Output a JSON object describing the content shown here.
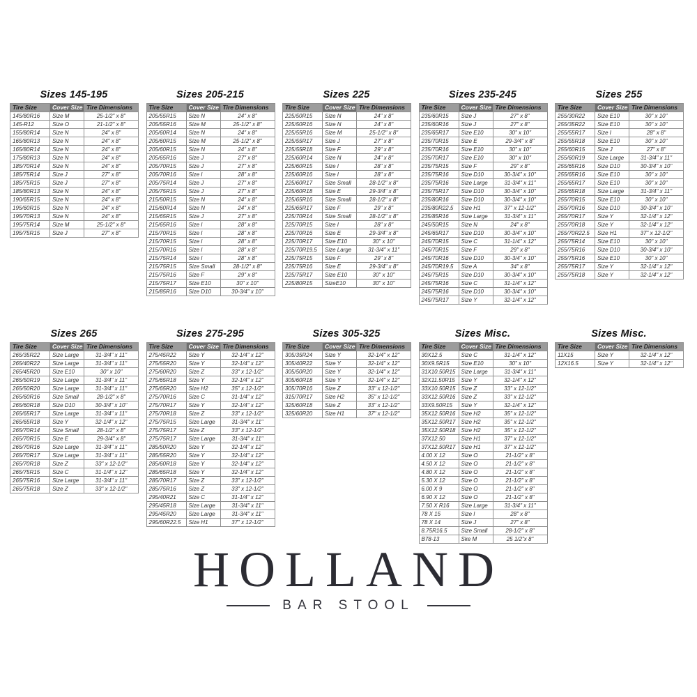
{
  "columns": [
    "Tire Size",
    "Cover Size",
    "Tire Dimensions"
  ],
  "colors": {
    "header_bg": "#9c9c9c",
    "cover_header_bg": "#6f6f6f",
    "cover_header_text": "#ffffff",
    "border": "#8f8f8f",
    "cell_text": "#2e2e2e",
    "logo_text": "#2c2c33"
  },
  "logo": {
    "name": "HOLLAND",
    "subtitle": "BAR STOOL"
  },
  "tables": [
    {
      "title": "Sizes 145-195",
      "rows": [
        [
          "145/80R16",
          "Size M",
          "25-1/2\" x 8\""
        ],
        [
          "145-R12",
          "Size O",
          "21-1/2\" x 8\""
        ],
        [
          "155/80R14",
          "Size N",
          "24\" x 8\""
        ],
        [
          "165/80R13",
          "Size N",
          "24\" x 8\""
        ],
        [
          "165/80R14",
          "Size N",
          "24\" x 8\""
        ],
        [
          "175/80R13",
          "Size N",
          "24\" x 8\""
        ],
        [
          "185/70R14",
          "Size N",
          "24\" x 8\""
        ],
        [
          "185/75R14",
          "Size J",
          "27\" x 8\""
        ],
        [
          "185/75R15",
          "Size J",
          "27\" x 8\""
        ],
        [
          "185/80R13",
          "Size N",
          "24\" x 8\""
        ],
        [
          "190/65R15",
          "Size N",
          "24\" x 8\""
        ],
        [
          "195/60R15",
          "Size N",
          "24\" x 8\""
        ],
        [
          "195/70R13",
          "Size N",
          "24\" x 8\""
        ],
        [
          "195/75R14",
          "Size M",
          "25-1/2\" x 8\""
        ],
        [
          "195/75R15",
          "Size J",
          "27\" x 8\""
        ]
      ]
    },
    {
      "title": "Sizes 205-215",
      "rows": [
        [
          "205/55R15",
          "Size N",
          "24\" x 8\""
        ],
        [
          "205/55R16",
          "Size M",
          "25-1/2\" x 8\""
        ],
        [
          "205/60R14",
          "Size N",
          "24\" x 8\""
        ],
        [
          "205/60R15",
          "Size M",
          "25-1/2\" x 8\""
        ],
        [
          "205/60R15",
          "Size N",
          "24\" x 8\""
        ],
        [
          "205/65R16",
          "Size J",
          "27\" x 8\""
        ],
        [
          "205/70R15",
          "Size J",
          "27\" x 8\""
        ],
        [
          "205/70R16",
          "Size I",
          "28\" x 8\""
        ],
        [
          "205/75R14",
          "Size J",
          "27\" x 8\""
        ],
        [
          "205/75R15",
          "Size J",
          "27\" x 8\""
        ],
        [
          "215/50R15",
          "Size N",
          "24\" x 8\""
        ],
        [
          "215/60R14",
          "Size N",
          "24\" x 8\""
        ],
        [
          "215/65R15",
          "Size J",
          "27\" x 8\""
        ],
        [
          "215/65R16",
          "Size I",
          "28\" x 8\""
        ],
        [
          "215/70R15",
          "Size I",
          "28\" x 8\""
        ],
        [
          "215/70R15",
          "Size I",
          "28\" x 8\""
        ],
        [
          "215/70R16",
          "Size I",
          "28\" x 8\""
        ],
        [
          "215/75R14",
          "Size I",
          "28\" x 8\""
        ],
        [
          "215/75R15",
          "Size Small",
          "28-1/2\" x 8\""
        ],
        [
          "215/75R16",
          "Size F",
          "29\" x 8\""
        ],
        [
          "215/75R17",
          "Size E10",
          "30\" x 10\""
        ],
        [
          "215/85R16",
          "Size D10",
          "30-3/4\" x 10\""
        ]
      ]
    },
    {
      "title": "Sizes 225",
      "rows": [
        [
          "225/50R15",
          "Size N",
          "24\" x 8\""
        ],
        [
          "225/50R16",
          "Size N",
          "24\" x 8\""
        ],
        [
          "225/55R16",
          "Size M",
          "25-1/2\" x 8\""
        ],
        [
          "225/55R17",
          "Size J",
          "27\" x 8\""
        ],
        [
          "225/55R18",
          "Size F",
          "29\" x 8\""
        ],
        [
          "225/60R14",
          "Size N",
          "24\" x 8\""
        ],
        [
          "225/60R15",
          "Size I",
          "28\" x 8\""
        ],
        [
          "225/60R16",
          "Size I",
          "28\" x 8\""
        ],
        [
          "225/60R17",
          "Size Small",
          "28-1/2\" x 8\""
        ],
        [
          "225/60R18",
          "Size E",
          "29-3/4\" x 8\""
        ],
        [
          "225/65R16",
          "Size Small",
          "28-1/2\" x 8\""
        ],
        [
          "225/65R17",
          "Size F",
          "29\" x 8\""
        ],
        [
          "225/70R14",
          "Size Small",
          "28-1/2\" x 8\""
        ],
        [
          "225/70R15",
          "Size I",
          "28\" x 8\""
        ],
        [
          "225/70R16",
          "Size E",
          "29-3/4\" x 8\""
        ],
        [
          "225/70R17",
          "Size E10",
          "30\" x 10\""
        ],
        [
          "225/70R19.5",
          "Size Large",
          "31-3/4\" x 11\""
        ],
        [
          "225/75R15",
          "Size F",
          "29\" x 8\""
        ],
        [
          "225/75R16",
          "Size E",
          "29-3/4\" x 8\""
        ],
        [
          "225/75R17",
          "Size E10",
          "30\" x 10\""
        ],
        [
          "225/80R15",
          "SizeE10",
          "30\" x 10\""
        ]
      ]
    },
    {
      "title": "Sizes 235-245",
      "rows": [
        [
          "235/60R15",
          "Size J",
          "27\" x 8\""
        ],
        [
          "235/60R16",
          "Size J",
          "27\" x 8\""
        ],
        [
          "235/65R17",
          "Size E10",
          "30\" x 10\""
        ],
        [
          "235/70R15",
          "Size E",
          "29-3/4\" x 8\""
        ],
        [
          "235/70R16",
          "Size E10",
          "30\" x 10\""
        ],
        [
          "235/70R17",
          "Size E10",
          "30\" x 10\""
        ],
        [
          "235/75R15",
          "Size F",
          "29\" x 8\""
        ],
        [
          "235/75R16",
          "Size D10",
          "30-3/4\" x 10\""
        ],
        [
          "235/75R16",
          "Size Large",
          "31-3/4\" x 11\""
        ],
        [
          "235/75R17",
          "Size D10",
          "30-3/4\" x 10\""
        ],
        [
          "235/80R16",
          "Size D10",
          "30-3/4\" x 10\""
        ],
        [
          "235/80R22.5",
          "Size H1",
          "37\" x 12-1/2\""
        ],
        [
          "235/85R16",
          "Size Large",
          "31-3/4\" x 11\""
        ],
        [
          "245/50R15",
          "Size N",
          "24\" x 8\""
        ],
        [
          "245/65R17",
          "Size D10",
          "30-3/4\" x 10\""
        ],
        [
          "245/70R15",
          "Size C",
          "31-1/4\" x 12\""
        ],
        [
          "245/70R15",
          "Size F",
          "29\" x 8\""
        ],
        [
          "245/70R16",
          "Size D10",
          "30-3/4\" x 10\""
        ],
        [
          "245/70R19.5",
          "Size A",
          "34\" x 8\""
        ],
        [
          "245/75R15",
          "Size D10",
          "30-3/4\" x 10\""
        ],
        [
          "245/75R16",
          "Size C",
          "31-1/4\" x 12\""
        ],
        [
          "245/75R16",
          "Size D10",
          "30-3/4\" x 10\""
        ],
        [
          "245/75R17",
          "Size Y",
          "32-1/4\" x 12\""
        ]
      ]
    },
    {
      "title": "Sizes 255",
      "rows": [
        [
          "255/30R22",
          "Size E10",
          "30\" x 10\""
        ],
        [
          "255/35R22",
          "Size E10",
          "30\" x 10\""
        ],
        [
          "255/55R17",
          "Size I",
          "28\" x 8\""
        ],
        [
          "255/55R18",
          "Size E10",
          "30\" x 10\""
        ],
        [
          "255/60R15",
          "Size J",
          "27\" x 8\""
        ],
        [
          "255/60R19",
          "Size Large",
          "31-3/4\" x 11\""
        ],
        [
          "255/65R16",
          "Size D10",
          "30-3/4\" x 10\""
        ],
        [
          "255/65R16",
          "Size E10",
          "30\" x 10\""
        ],
        [
          "255/65R17",
          "Size E10",
          "30\" x 10\""
        ],
        [
          "255/65R18",
          "Size Large",
          "31-3/4\" x 11\""
        ],
        [
          "255/70R15",
          "Size E10",
          "30\" x 10\""
        ],
        [
          "255/70R16",
          "Size D10",
          "30-3/4\" x 10\""
        ],
        [
          "255/70R17",
          "Size Y",
          "32-1/4\" x 12\""
        ],
        [
          "255/70R18",
          "Size Y",
          "32-1/4\" x 12\""
        ],
        [
          "255/70R22.5",
          "Size H1",
          "37\" x 12-1/2\""
        ],
        [
          "255/75R14",
          "Size E10",
          "30\" x 10\""
        ],
        [
          "255/75R16",
          "Size D10",
          "30-3/4\" x 10\""
        ],
        [
          "255/75R16",
          "Size E10",
          "30\" x 10\""
        ],
        [
          "255/75R17",
          "Size Y",
          "32-1/4\" x 12\""
        ],
        [
          "255/75R18",
          "Size Y",
          "32-1/4\" x 12\""
        ]
      ]
    },
    {
      "title": "Sizes 265",
      "rows": [
        [
          "265/35R22",
          "Size Large",
          "31-3/4\" x 11\""
        ],
        [
          "265/40R22",
          "Size Large",
          "31-3/4\" x 11\""
        ],
        [
          "265/45R20",
          "Size E10",
          "30\" x 10\""
        ],
        [
          "265/50R19",
          "Size Large",
          "31-3/4\" x 11\""
        ],
        [
          "265/50R20",
          "Size Large",
          "31-3/4\" x 11\""
        ],
        [
          "265/60R16",
          "Size Small",
          "28-1/2\" x 8\""
        ],
        [
          "265/60R18",
          "Size D10",
          "30-3/4\" x 10\""
        ],
        [
          "265/65R17",
          "Size Large",
          "31-3/4\" x 11\""
        ],
        [
          "265/65R18",
          "Size Y",
          "32-1/4\" x 12\""
        ],
        [
          "265/70R14",
          "Size Small",
          "28-1/2\" x 8\""
        ],
        [
          "265/70R15",
          "Size E",
          "29-3/4\" x 8\""
        ],
        [
          "265/70R16",
          "Size Large",
          "31-3/4\" x 11\""
        ],
        [
          "265/70R17",
          "Size Large",
          "31-3/4\" x 11\""
        ],
        [
          "265/70R18",
          "Size Z",
          "33\" x 12-1/2\""
        ],
        [
          "265/75R15",
          "Size C",
          "31-1/4\" x 12\""
        ],
        [
          "265/75R16",
          "Size Large",
          "31-3/4\" x 11\""
        ],
        [
          "265/75R18",
          "Size Z",
          "33\" x 12-1/2\""
        ]
      ]
    },
    {
      "title": "Sizes 275-295",
      "rows": [
        [
          "275/45R22",
          "Size Y",
          "32-1/4\" x 12\""
        ],
        [
          "275/55R20",
          "Size Y",
          "32-1/4\" x 12\""
        ],
        [
          "275/60R20",
          "Size Z",
          "33\" x 12-1/2\""
        ],
        [
          "275/65R18",
          "Size Y",
          "32-1/4\" x 12\""
        ],
        [
          "275/65R20",
          "Size H2",
          "35\" x 12-1/2\""
        ],
        [
          "275/70R16",
          "Size C",
          "31-1/4\" x 12\""
        ],
        [
          "275/70R17",
          "Size Y",
          "32-1/4\" x 12\""
        ],
        [
          "275/70R18",
          "Size Z",
          "33\" x 12-1/2\""
        ],
        [
          "275/75R15",
          "Size Large",
          "31-3/4\" x 11\""
        ],
        [
          "275/75R17",
          "Size Z",
          "33\" x 12-1/2\""
        ],
        [
          "275/75R17",
          "Size Large",
          "31-3/4\" x 11\""
        ],
        [
          "285/50R20",
          "Size Y",
          "32-1/4\" x 12\""
        ],
        [
          "285/55R20",
          "Size Y",
          "32-1/4\" x 12\""
        ],
        [
          "285/60R18",
          "Size Y",
          "32-1/4\" x 12\""
        ],
        [
          "285/65R18",
          "Size Y",
          "32-1/4\" x 12\""
        ],
        [
          "285/70R17",
          "Size Z",
          "33\" x 12-1/2\""
        ],
        [
          "285/75R16",
          "Size Z",
          "33\" x 12-1/2\""
        ],
        [
          "295/40R21",
          "Size C",
          "31-1/4\" x 12\""
        ],
        [
          "295/45R18",
          "Size Large",
          "31-3/4\" x 11\""
        ],
        [
          "295/45R20",
          "Size Large",
          "31-3/4\" x 11\""
        ],
        [
          "295/60R22.5",
          "Size H1",
          "37\" x 12-1/2\""
        ]
      ]
    },
    {
      "title": "Sizes 305-325",
      "rows": [
        [
          "305/35R24",
          "Size Y",
          "32-1/4\" x 12\""
        ],
        [
          "305/40R22",
          "Size Y",
          "32-1/4\" x 12\""
        ],
        [
          "305/50R20",
          "Size Y",
          "32-1/4\" x 12\""
        ],
        [
          "305/60R18",
          "Size Y",
          "32-1/4\" x 12\""
        ],
        [
          "305/70R16",
          "Size Z",
          "33\" x 12-1/2\""
        ],
        [
          "315/70R17",
          "Size H2",
          "35\" x 12-1/2\""
        ],
        [
          "325/60R18",
          "Size Z",
          "33\" x 12-1/2\""
        ],
        [
          "325/60R20",
          "Size H1",
          "37\" x 12-1/2\""
        ]
      ]
    },
    {
      "title": "Sizes Misc.",
      "rows": [
        [
          "30X12.5",
          "Size C",
          "31-1/4\" x 12\""
        ],
        [
          "30X9.5R15",
          "Size E10",
          "30\" x 10\""
        ],
        [
          "31X10.50R15",
          "Size Large",
          "31-3/4\" x 11\""
        ],
        [
          "32X11.50R15",
          "Size Y",
          "32-1/4\" x 12\""
        ],
        [
          "33X10.50R15",
          "Size Z",
          "33\" x 12-1/2\""
        ],
        [
          "33X12.50R16",
          "Size Z",
          "33\" x 12-1/2\""
        ],
        [
          "33X9.50R15",
          "Size Y",
          "32-1/4\" x 12\""
        ],
        [
          "35X12.50R16",
          "Size H2",
          "35\" x 12-1/2\""
        ],
        [
          "35X12.50R17",
          "Size H2",
          "35\" x 12-1/2\""
        ],
        [
          "35X12.50R18",
          "Size H2",
          "35\" x 12-1/2\""
        ],
        [
          "37X12.50",
          "Size H1",
          "37\" x 12-1/2\""
        ],
        [
          "37X12.50R17",
          "Size H1",
          "37\" x 12-1/2\""
        ],
        [
          "4.00 X 12",
          "Size O",
          "21-1/2\" x 8\""
        ],
        [
          "4.50 X 12",
          "Size O",
          "21-1/2\" x 8\""
        ],
        [
          "4.80 X 12",
          "Size O",
          "21-1/2\" x 8\""
        ],
        [
          "5.30 X 12",
          "Size O",
          "21-1/2\" x 8\""
        ],
        [
          "6.00 X 9",
          "Size O",
          "21-1/2\" x 8\""
        ],
        [
          "6.90 X 12",
          "Size O",
          "21-1/2\" x 8\""
        ],
        [
          "7.50 X R16",
          "Size Large",
          "31-3/4\" x 11\""
        ],
        [
          "78 X 15",
          "Size I",
          "28\" x 8\""
        ],
        [
          "78 X 14",
          "Size J",
          "27\" x 8\""
        ],
        [
          "8.75R16.5",
          "Size Small",
          "28-1/2\" x 8\""
        ],
        [
          "B78-13",
          "Ske M",
          "25 1/2\"x 8\""
        ]
      ]
    },
    {
      "title": "Sizes Misc.",
      "rows": [
        [
          "11X15",
          "Size Y",
          "32-1/4\" x 12\""
        ],
        [
          "12X16.5",
          "Size Y",
          "32-1/4\" x 12\""
        ]
      ]
    }
  ]
}
